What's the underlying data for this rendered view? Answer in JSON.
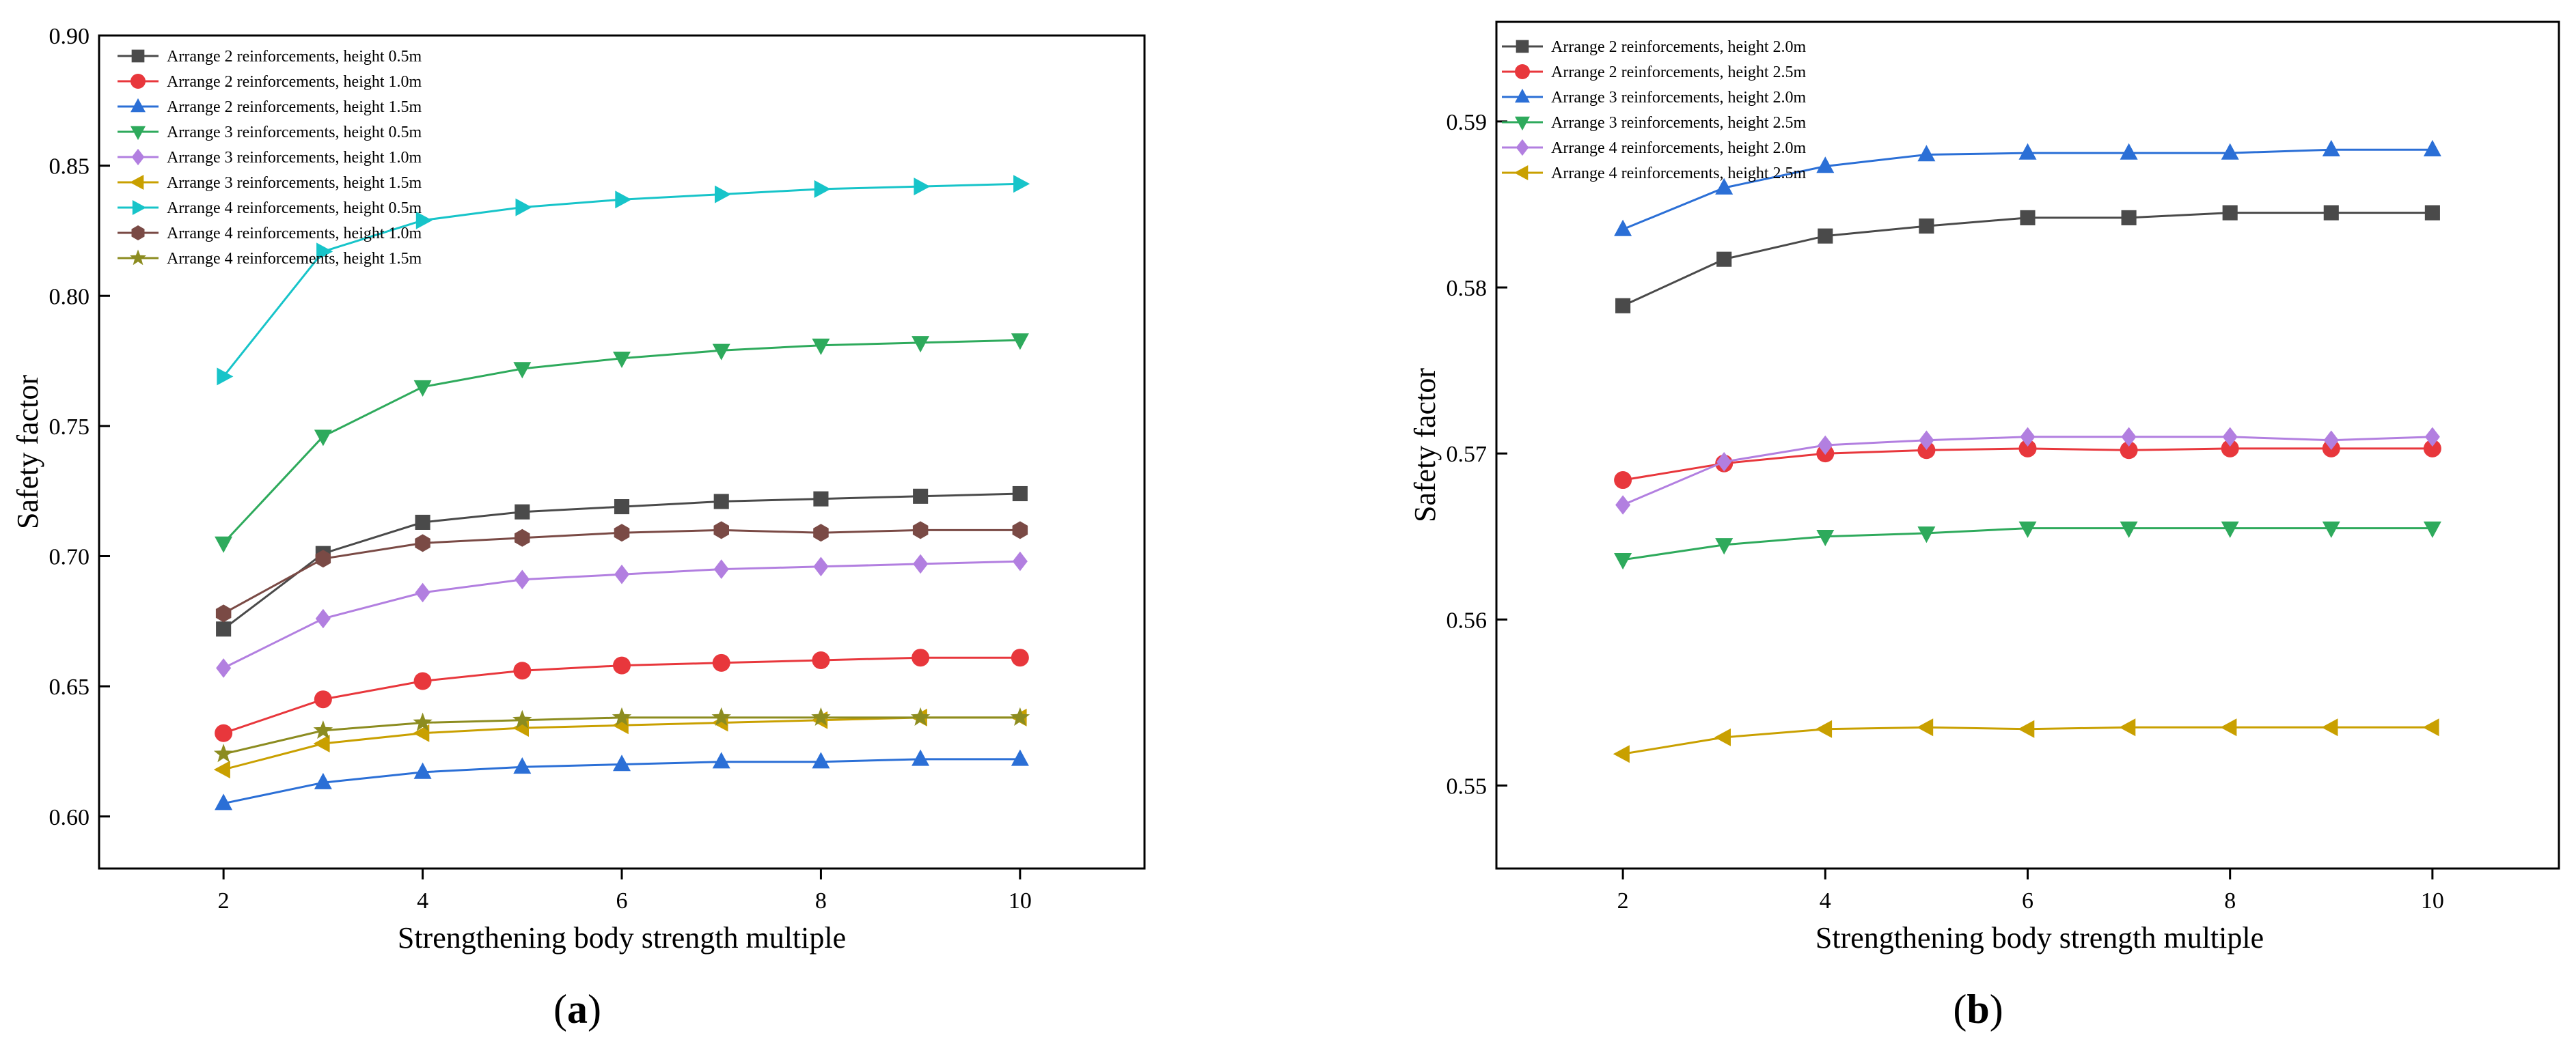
{
  "figure": {
    "panels": [
      {
        "label_open": "(",
        "label_letter": "a",
        "label_close": ")"
      },
      {
        "label_open": "(",
        "label_letter": "b",
        "label_close": ")"
      }
    ]
  },
  "chart_data": [
    {
      "type": "line",
      "panel": "a",
      "title": "",
      "xlabel": "Strengthening body strength multiple",
      "ylabel": "Safety factor",
      "xlim": [
        0.75,
        11.25
      ],
      "ylim": [
        0.58,
        0.9
      ],
      "xticks": [
        2,
        4,
        6,
        8,
        10
      ],
      "yticks": [
        0.6,
        0.65,
        0.7,
        0.75,
        0.8,
        0.85,
        0.9
      ],
      "ytick_decimals": 2,
      "legend_position": "top-left",
      "x": [
        2,
        3,
        4,
        5,
        6,
        7,
        8,
        9,
        10
      ],
      "series": [
        {
          "name": "Arrange 2 reinforcements, height 0.5m",
          "marker": "square",
          "color": "#4a4a4a",
          "values": [
            0.672,
            0.701,
            0.713,
            0.717,
            0.719,
            0.721,
            0.722,
            0.723,
            0.724
          ]
        },
        {
          "name": "Arrange 2 reinforcements, height 1.0m",
          "marker": "circle",
          "color": "#e8373c",
          "values": [
            0.632,
            0.645,
            0.652,
            0.656,
            0.658,
            0.659,
            0.66,
            0.661,
            0.661
          ]
        },
        {
          "name": "Arrange 2 reinforcements, height 1.5m",
          "marker": "triangle-up",
          "color": "#2b6fd6",
          "values": [
            0.605,
            0.613,
            0.617,
            0.619,
            0.62,
            0.621,
            0.621,
            0.622,
            0.622
          ]
        },
        {
          "name": "Arrange 3 reinforcements, height 0.5m",
          "marker": "triangle-down",
          "color": "#2eaa5c",
          "values": [
            0.705,
            0.746,
            0.765,
            0.772,
            0.776,
            0.779,
            0.781,
            0.782,
            0.783
          ]
        },
        {
          "name": "Arrange 3 reinforcements, height 1.0m",
          "marker": "diamond",
          "color": "#b27fe0",
          "values": [
            0.657,
            0.676,
            0.686,
            0.691,
            0.693,
            0.695,
            0.696,
            0.697,
            0.698
          ]
        },
        {
          "name": "Arrange 3 reinforcements, height 1.5m",
          "marker": "triangle-left",
          "color": "#c9a000",
          "values": [
            0.618,
            0.628,
            0.632,
            0.634,
            0.635,
            0.636,
            0.637,
            0.638,
            0.638
          ]
        },
        {
          "name": "Arrange 4 reinforcements, height 0.5m",
          "marker": "triangle-right",
          "color": "#17c4c9",
          "values": [
            0.769,
            0.817,
            0.829,
            0.834,
            0.837,
            0.839,
            0.841,
            0.842,
            0.843
          ]
        },
        {
          "name": "Arrange 4 reinforcements, height 1.0m",
          "marker": "hexagon",
          "color": "#7a4a45",
          "values": [
            0.678,
            0.699,
            0.705,
            0.707,
            0.709,
            0.71,
            0.709,
            0.71,
            0.71
          ]
        },
        {
          "name": "Arrange 4 reinforcements, height 1.5m",
          "marker": "star",
          "color": "#8c8c20",
          "values": [
            0.624,
            0.633,
            0.636,
            0.637,
            0.638,
            0.638,
            0.638,
            0.638,
            0.638
          ]
        }
      ]
    },
    {
      "type": "line",
      "panel": "b",
      "title": "",
      "xlabel": "Strengthening body strength multiple",
      "ylabel": "Safety factor",
      "xlim": [
        0.75,
        11.25
      ],
      "ylim": [
        0.545,
        0.596
      ],
      "xticks": [
        2,
        4,
        6,
        8,
        10
      ],
      "yticks": [
        0.55,
        0.56,
        0.57,
        0.58,
        0.59
      ],
      "ytick_decimals": 2,
      "legend_position": "top-left",
      "x": [
        2,
        3,
        4,
        5,
        6,
        7,
        8,
        9,
        10
      ],
      "series": [
        {
          "name": "Arrange 2 reinforcements, height 2.0m",
          "marker": "square",
          "color": "#4a4a4a",
          "values": [
            0.5789,
            0.5817,
            0.5831,
            0.5837,
            0.5842,
            0.5842,
            0.5845,
            0.5845,
            0.5845
          ]
        },
        {
          "name": "Arrange 2 reinforcements, height 2.5m",
          "marker": "circle",
          "color": "#e8373c",
          "values": [
            0.5684,
            0.5694,
            0.57,
            0.5702,
            0.5703,
            0.5702,
            0.5703,
            0.5703,
            0.5703
          ]
        },
        {
          "name": "Arrange 3 reinforcements, height 2.0m",
          "marker": "triangle-up",
          "color": "#2b6fd6",
          "values": [
            0.5835,
            0.586,
            0.5873,
            0.588,
            0.5881,
            0.5881,
            0.5881,
            0.5883,
            0.5883
          ]
        },
        {
          "name": "Arrange 3 reinforcements, height 2.5m",
          "marker": "triangle-down",
          "color": "#2eaa5c",
          "values": [
            0.5636,
            0.5645,
            0.565,
            0.5652,
            0.5655,
            0.5655,
            0.5655,
            0.5655,
            0.5655
          ]
        },
        {
          "name": "Arrange 4 reinforcements, height 2.0m",
          "marker": "diamond",
          "color": "#b27fe0",
          "values": [
            0.5669,
            0.5695,
            0.5705,
            0.5708,
            0.571,
            0.571,
            0.571,
            0.5708,
            0.571
          ]
        },
        {
          "name": "Arrange 4 reinforcements, height 2.5m",
          "marker": "triangle-left",
          "color": "#c9a000",
          "values": [
            0.5519,
            0.5529,
            0.5534,
            0.5535,
            0.5534,
            0.5535,
            0.5535,
            0.5535,
            0.5535
          ]
        }
      ]
    }
  ]
}
